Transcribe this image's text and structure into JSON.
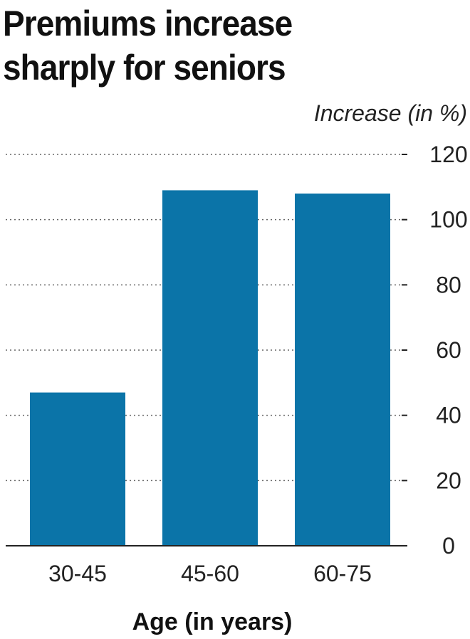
{
  "header": {
    "title_line1": "Premiums increase",
    "title_line2": "sharply for seniors"
  },
  "chart_data": {
    "type": "bar",
    "title": "Premiums increase sharply for seniors",
    "categories": [
      "30-45",
      "45-60",
      "60-75"
    ],
    "values": [
      47,
      109,
      108
    ],
    "xlabel": "Age (in years)",
    "ylabel": "Increase (in %)",
    "ylim": [
      0,
      120
    ],
    "yticks": [
      0,
      20,
      40,
      60,
      80,
      100,
      120
    ],
    "y_axis_position": "right",
    "grid": true,
    "grid_style": "dotted",
    "bar_color": "#0b74a8",
    "legend": "none"
  }
}
